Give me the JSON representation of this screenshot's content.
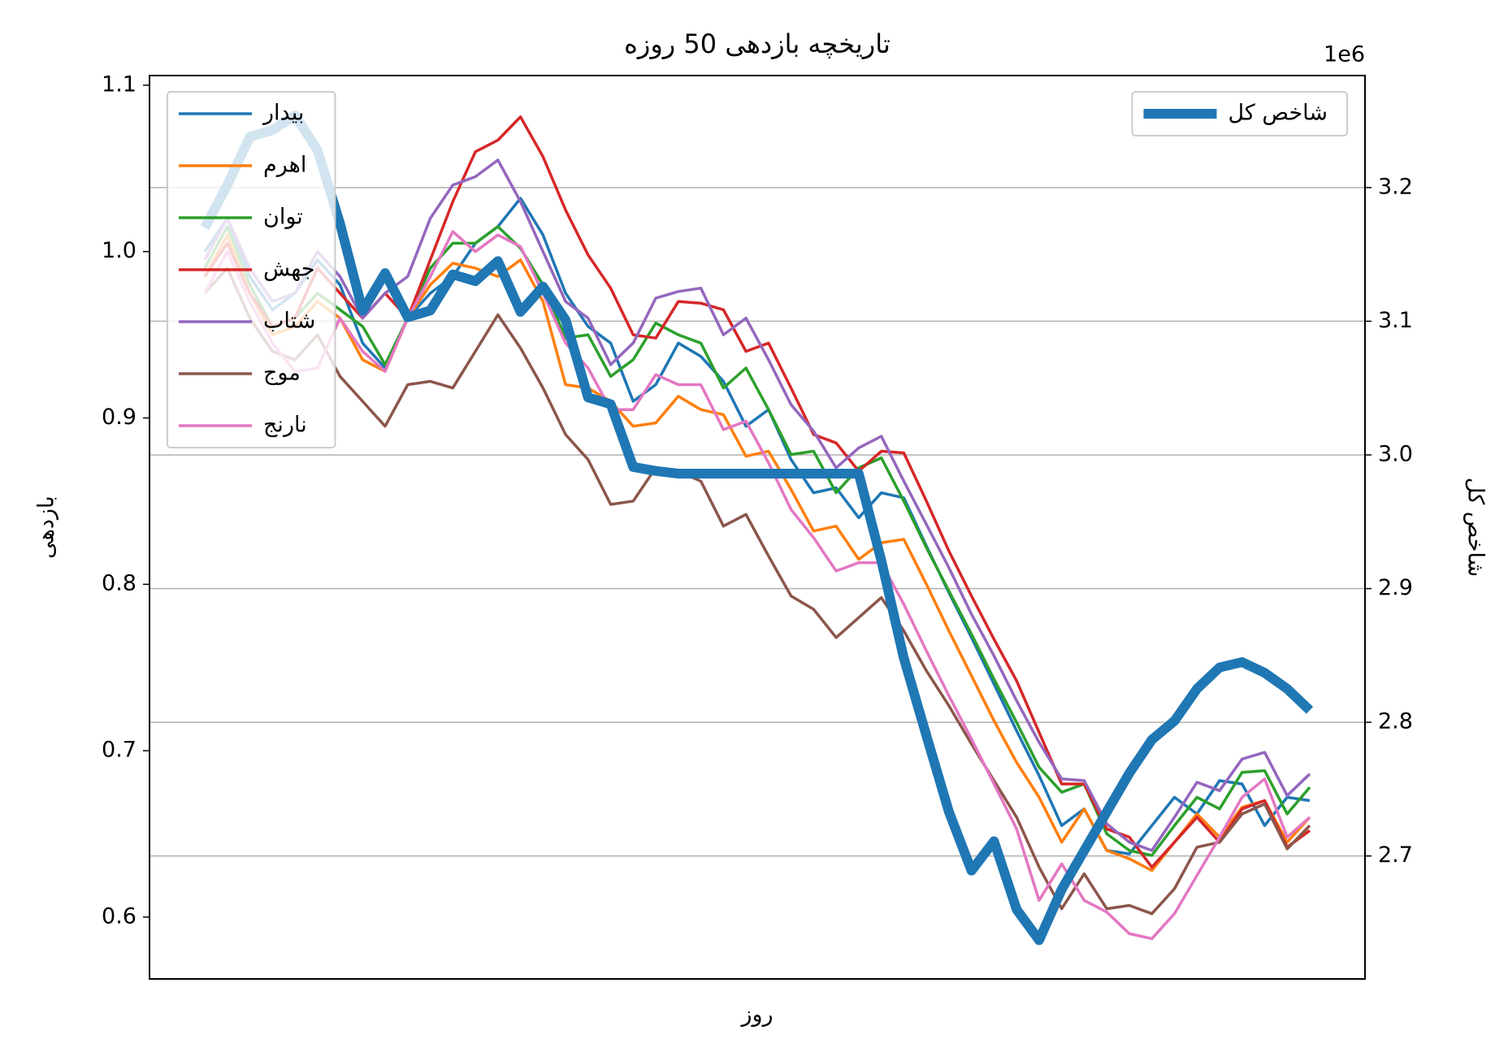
{
  "chart_data": {
    "type": "line",
    "title": "تاریخچه بازدهی 50 روزه",
    "xlabel": "روز",
    "ylabel": "بازدهی",
    "y2label": "شاخص کل",
    "y2_offset_label": "1e6",
    "ylim": [
      0.5628,
      1.1058
    ],
    "yticks": [
      0.6,
      0.7,
      0.8,
      0.9,
      {
        "value": 1,
        "label": "1.0"
      },
      1.1
    ],
    "y2lim": [
      2608000,
      3283800
    ],
    "y2ticks": [
      {
        "value": 2700000,
        "label": "2.7"
      },
      {
        "value": 2800000,
        "label": "2.8"
      },
      {
        "value": 2900000,
        "label": "2.9"
      },
      {
        "value": 3000000,
        "label": "3.0"
      },
      {
        "value": 3100000,
        "label": "3.1"
      },
      {
        "value": 3200000,
        "label": "3.2"
      }
    ],
    "grid": "y2",
    "legend_loc": "upper left",
    "legend2_loc": "upper right",
    "series": [
      {
        "name": "بیدار",
        "color": "#1f77b4",
        "values": [
          1.0,
          1.02,
          0.985,
          0.965,
          0.975,
          0.995,
          0.98,
          0.945,
          0.93,
          0.96,
          0.975,
          0.985,
          1.005,
          1.015,
          1.032,
          1.01,
          0.975,
          0.955,
          0.945,
          0.91,
          0.92,
          0.945,
          0.937,
          0.922,
          0.895,
          0.905,
          0.875,
          0.855,
          0.858,
          0.84,
          0.855,
          0.852,
          0.823,
          0.795,
          0.768,
          0.74,
          0.712,
          0.685,
          0.655,
          0.665,
          0.64,
          0.638,
          0.655,
          0.672,
          0.662,
          0.682,
          0.68,
          0.655,
          0.672,
          0.67
        ]
      },
      {
        "name": "اهرم",
        "color": "#ff7f0e",
        "values": [
          0.985,
          1.01,
          0.975,
          0.95,
          0.955,
          0.97,
          0.96,
          0.935,
          0.928,
          0.96,
          0.98,
          0.993,
          0.99,
          0.985,
          0.995,
          0.97,
          0.92,
          0.918,
          0.91,
          0.895,
          0.897,
          0.913,
          0.905,
          0.902,
          0.877,
          0.88,
          0.857,
          0.832,
          0.835,
          0.815,
          0.825,
          0.827,
          0.8,
          0.772,
          0.745,
          0.718,
          0.693,
          0.672,
          0.645,
          0.665,
          0.64,
          0.635,
          0.628,
          0.645,
          0.662,
          0.648,
          0.666,
          0.67,
          0.645,
          0.66
        ]
      },
      {
        "name": "توان",
        "color": "#2ca02c",
        "values": [
          0.99,
          1.015,
          0.98,
          0.955,
          0.96,
          0.975,
          0.965,
          0.955,
          0.932,
          0.96,
          0.99,
          1.005,
          1.005,
          1.015,
          1.002,
          0.98,
          0.948,
          0.95,
          0.925,
          0.935,
          0.957,
          0.95,
          0.945,
          0.918,
          0.93,
          0.905,
          0.878,
          0.88,
          0.855,
          0.87,
          0.876,
          0.85,
          0.822,
          0.796,
          0.77,
          0.743,
          0.717,
          0.69,
          0.675,
          0.68,
          0.65,
          0.64,
          0.637,
          0.655,
          0.672,
          0.665,
          0.687,
          0.688,
          0.662,
          0.678
        ]
      },
      {
        "name": "جهش",
        "color": "#d62728",
        "values": [
          0.985,
          1.005,
          0.975,
          0.955,
          0.96,
          0.99,
          0.975,
          0.96,
          0.975,
          0.96,
          0.995,
          1.03,
          1.06,
          1.067,
          1.081,
          1.057,
          1.025,
          0.998,
          0.978,
          0.95,
          0.948,
          0.97,
          0.969,
          0.965,
          0.94,
          0.945,
          0.918,
          0.89,
          0.885,
          0.868,
          0.88,
          0.879,
          0.85,
          0.82,
          0.793,
          0.767,
          0.742,
          0.711,
          0.68,
          0.68,
          0.653,
          0.648,
          0.63,
          0.645,
          0.66,
          0.645,
          0.665,
          0.67,
          0.642,
          0.652
        ]
      },
      {
        "name": "شتاب",
        "color": "#9467bd",
        "values": [
          0.995,
          1.02,
          0.99,
          0.97,
          0.975,
          1.0,
          0.985,
          0.96,
          0.975,
          0.985,
          1.02,
          1.04,
          1.045,
          1.055,
          1.03,
          1.0,
          0.97,
          0.96,
          0.932,
          0.945,
          0.972,
          0.976,
          0.978,
          0.95,
          0.96,
          0.935,
          0.908,
          0.892,
          0.87,
          0.882,
          0.889,
          0.862,
          0.836,
          0.81,
          0.782,
          0.757,
          0.73,
          0.705,
          0.683,
          0.682,
          0.656,
          0.645,
          0.64,
          0.66,
          0.681,
          0.676,
          0.695,
          0.699,
          0.673,
          0.686
        ]
      },
      {
        "name": "موج",
        "color": "#8c564b",
        "values": [
          0.975,
          0.99,
          0.96,
          0.94,
          0.935,
          0.95,
          0.925,
          0.91,
          0.895,
          0.92,
          0.922,
          0.918,
          0.94,
          0.962,
          0.942,
          0.918,
          0.89,
          0.875,
          0.848,
          0.85,
          0.87,
          0.868,
          0.862,
          0.835,
          0.842,
          0.817,
          0.793,
          0.785,
          0.768,
          0.78,
          0.792,
          0.772,
          0.748,
          0.727,
          0.704,
          0.682,
          0.66,
          0.63,
          0.605,
          0.626,
          0.605,
          0.607,
          0.602,
          0.617,
          0.642,
          0.645,
          0.662,
          0.668,
          0.641,
          0.655
        ]
      },
      {
        "name": "نارنج",
        "color": "#e377c2",
        "values": [
          0.975,
          1.0,
          0.97,
          0.945,
          0.928,
          0.93,
          0.96,
          0.94,
          0.928,
          0.96,
          0.985,
          1.012,
          1.0,
          1.01,
          1.003,
          0.975,
          0.945,
          0.93,
          0.905,
          0.905,
          0.926,
          0.92,
          0.92,
          0.893,
          0.898,
          0.873,
          0.845,
          0.828,
          0.808,
          0.813,
          0.813,
          0.788,
          0.76,
          0.733,
          0.707,
          0.68,
          0.653,
          0.61,
          0.632,
          0.61,
          0.603,
          0.59,
          0.587,
          0.602,
          0.625,
          0.648,
          0.672,
          0.683,
          0.648,
          0.66
        ]
      },
      {
        "name": "شاخص کل",
        "color": "#1f77b4",
        "axis": "y2",
        "values": [
          3170000,
          3202000,
          3238000,
          3243000,
          3254000,
          3228000,
          3173000,
          3108000,
          3136000,
          3103000,
          3108000,
          3135000,
          3130000,
          3145000,
          3107000,
          3126000,
          3101000,
          3043000,
          3038000,
          2991000,
          2988000,
          2986000,
          2986000,
          2986000,
          2986000,
          2986000,
          2986000,
          2986000,
          2986000,
          2986000,
          2921000,
          2848000,
          2790000,
          2733000,
          2689000,
          2711000,
          2660000,
          2637000,
          2675000,
          2704000,
          2733000,
          2762000,
          2787000,
          2801000,
          2825000,
          2841000,
          2845000,
          2837000,
          2825000,
          2809000
        ]
      }
    ]
  }
}
